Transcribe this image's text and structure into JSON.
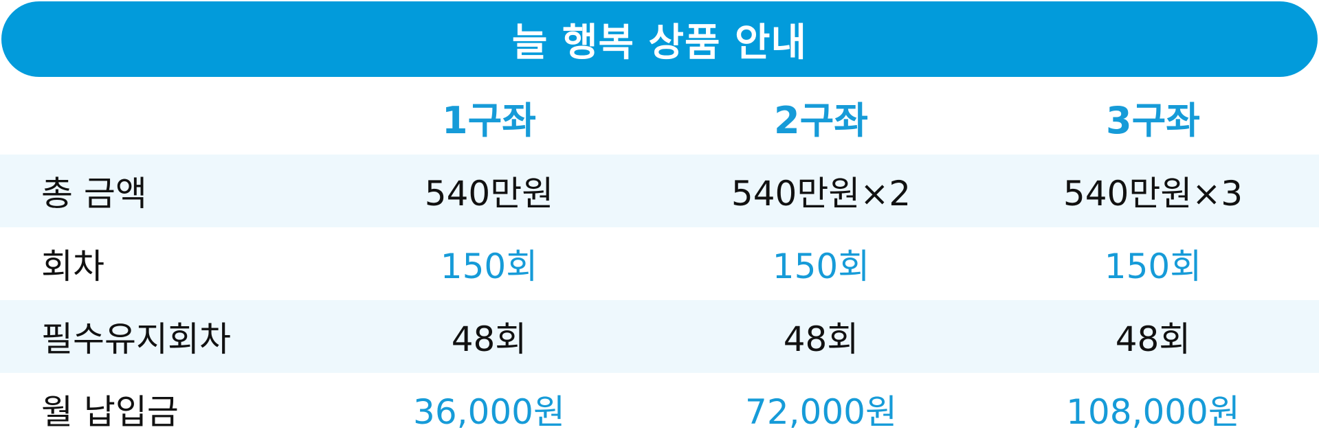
{
  "title": "늘 행복 상품 안내",
  "columns": [
    "1구좌",
    "2구좌",
    "3구좌"
  ],
  "rows": [
    {
      "label": "총 금액",
      "values": [
        "540만원",
        "540만원×2",
        "540만원×3"
      ],
      "highlight": false
    },
    {
      "label": "회차",
      "values": [
        "150회",
        "150회",
        "150회"
      ],
      "highlight": true
    },
    {
      "label": "필수유지회차",
      "values": [
        "48회",
        "48회",
        "48회"
      ],
      "highlight": false
    },
    {
      "label": "월 납입금",
      "values": [
        "36,000원",
        "72,000원",
        "108,000원"
      ],
      "highlight": true
    }
  ],
  "colors": {
    "banner": "#029bdb",
    "accent_text": "#169bd8",
    "row_shade": "#eef8fd",
    "body_text": "#111111"
  }
}
